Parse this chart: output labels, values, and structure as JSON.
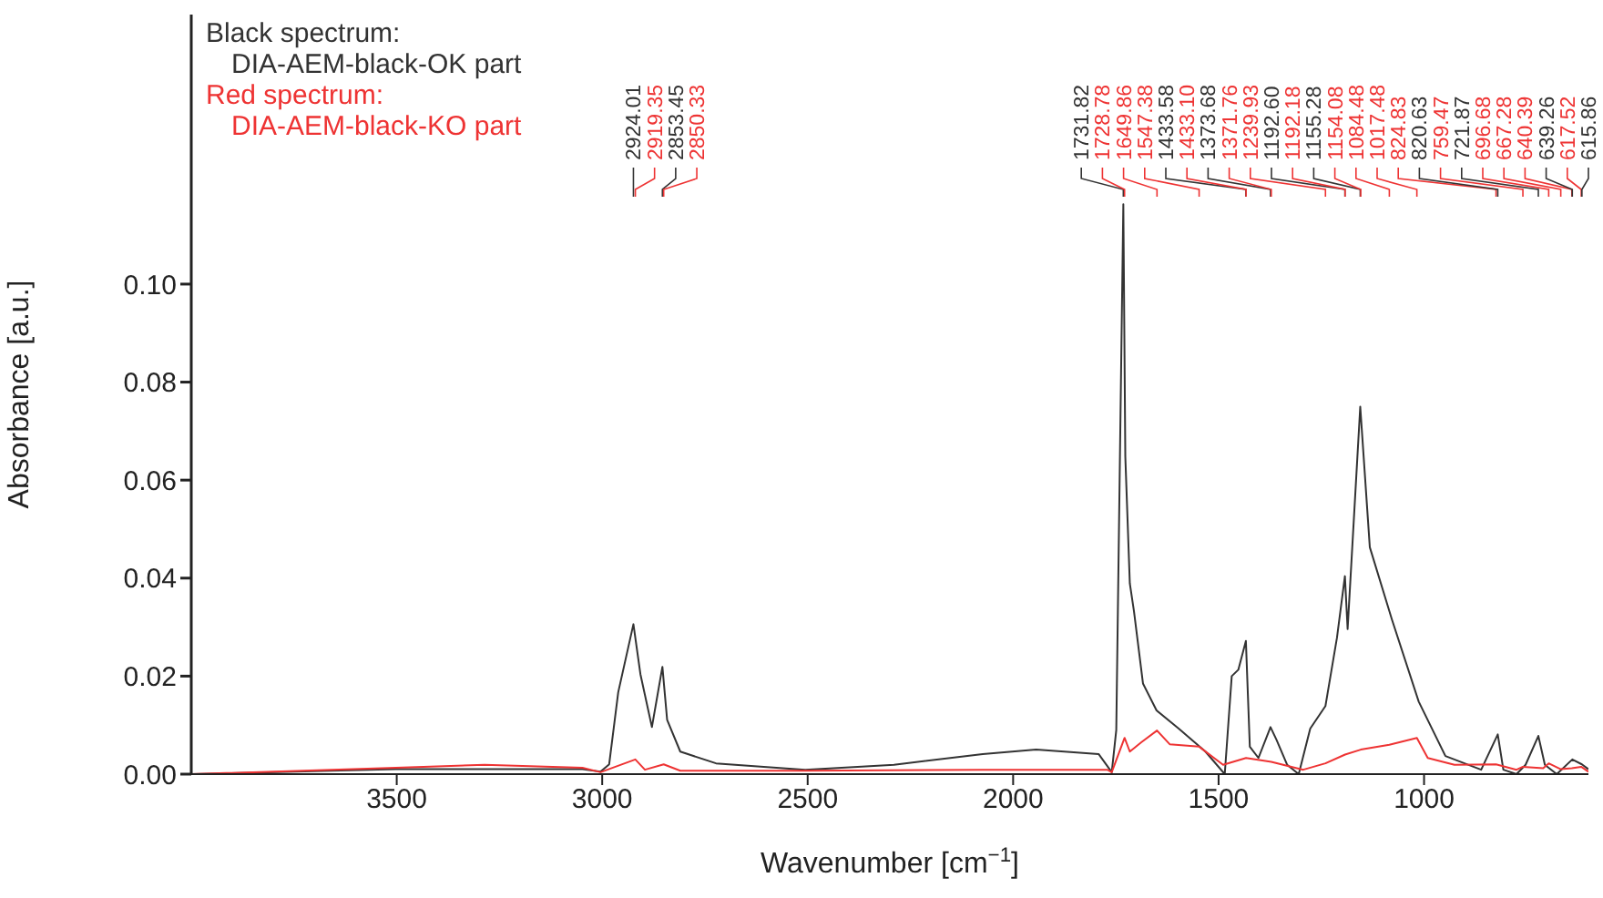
{
  "chart_data": {
    "type": "line",
    "xlabel": "Wavenumber [cm$^{−1}$]",
    "ylabel": "Absorbance [a.u.]",
    "xlim": [
      4000,
      600
    ],
    "xticks": [
      3500,
      3000,
      2500,
      2000,
      1500,
      1000
    ],
    "ylim": [
      0,
      0.155
    ],
    "yticks": [
      {
        "value": 0,
        "label": "0.00"
      },
      {
        "value": 0.02,
        "label": "0.02"
      },
      {
        "value": 0.04,
        "label": "0.04"
      },
      {
        "value": 0.06,
        "label": "0.06"
      },
      {
        "value": 0.08,
        "label": "0.08"
      },
      {
        "value": 0.1,
        "label": "0.10"
      }
    ],
    "legend": "top left",
    "series": [
      {
        "name": "Black spectrum:\nDIA-AEM-black-OK part",
        "color": "#333333",
        "x": [
          4000,
          3502,
          3048,
          3004,
          2983,
          2961,
          2924.01,
          2907,
          2879,
          2853.45,
          2842,
          2810,
          2723,
          2506,
          2290,
          2074,
          1944,
          1792,
          1760,
          1749,
          1731.82,
          1727,
          1716,
          1706,
          1684,
          1651,
          1597,
          1532,
          1485,
          1468,
          1452,
          1433.58,
          1424,
          1403,
          1373.68,
          1359,
          1333,
          1305,
          1277,
          1240,
          1212,
          1192.6,
          1186,
          1155.28,
          1132,
          1078,
          1013,
          948,
          861,
          820.63,
          807,
          775,
          753,
          721.87,
          706,
          677,
          639.26,
          615.86,
          600
        ],
        "values": [
          0.0,
          0.001,
          0.001,
          0.0005,
          0.002,
          0.0167,
          0.0306,
          0.0204,
          0.0096,
          0.0219,
          0.0111,
          0.0046,
          0.0022,
          0.0009,
          0.0019,
          0.0041,
          0.005,
          0.0041,
          0.0004,
          0.009,
          0.1163,
          0.0648,
          0.0389,
          0.0333,
          0.0185,
          0.013,
          0.0093,
          0.0046,
          0.0,
          0.02,
          0.0213,
          0.0272,
          0.0056,
          0.0033,
          0.0096,
          0.007,
          0.0019,
          0.0,
          0.0093,
          0.0139,
          0.0278,
          0.0404,
          0.0296,
          0.075,
          0.0463,
          0.0315,
          0.0148,
          0.0037,
          0.0009,
          0.0081,
          0.0009,
          0.0,
          0.0019,
          0.0078,
          0.0019,
          0.0,
          0.003,
          0.002,
          0.001
        ]
      },
      {
        "name": "Red spectrum:\nDIA-AEM-black-KO part",
        "color": "#ee3333",
        "x": [
          4000,
          3502,
          3286,
          3048,
          3004,
          2919.35,
          2896,
          2850.33,
          2810,
          2506,
          2074,
          1771,
          1760,
          1728.78,
          1716,
          1688,
          1649.86,
          1619,
          1547.38,
          1489,
          1433.1,
          1371.76,
          1294,
          1239.93,
          1192.18,
          1154.08,
          1084.48,
          1017.48,
          991,
          926,
          824.83,
          775,
          759.47,
          710,
          696.68,
          667.28,
          640.39,
          617.52,
          600
        ],
        "values": [
          0.0,
          0.0013,
          0.0019,
          0.0013,
          0.0004,
          0.003,
          0.0009,
          0.002,
          0.0007,
          0.0007,
          0.0009,
          0.0009,
          0.0004,
          0.0074,
          0.0046,
          0.0065,
          0.0089,
          0.0061,
          0.0056,
          0.0019,
          0.0033,
          0.0025,
          0.0009,
          0.0022,
          0.004,
          0.005,
          0.006,
          0.0074,
          0.0033,
          0.0019,
          0.002,
          0.0009,
          0.0015,
          0.0012,
          0.0022,
          0.001,
          0.0012,
          0.0015,
          0.0005
        ]
      }
    ],
    "annotations": [
      {
        "text": "2924.01",
        "x": 2924.01
      },
      {
        "text": "2919.35",
        "x": 2919.35
      },
      {
        "text": "2853.45",
        "x": 2853.45
      },
      {
        "text": "2850.33",
        "x": 2850.33
      },
      {
        "text": "1731.82",
        "x": 1731.82
      },
      {
        "text": "1728.78",
        "x": 1728.78
      },
      {
        "text": "1649.86",
        "x": 1649.86
      },
      {
        "text": "1547.38",
        "x": 1547.38
      },
      {
        "text": "1433.58",
        "x": 1433.58
      },
      {
        "text": "1433.10",
        "x": 1433.1
      },
      {
        "text": "1373.68",
        "x": 1373.68
      },
      {
        "text": "1371.76",
        "x": 1371.76
      },
      {
        "text": "1239.93",
        "x": 1239.93
      },
      {
        "text": "1192.60",
        "x": 1192.6
      },
      {
        "text": "1192.18",
        "x": 1192.18
      },
      {
        "text": "1155.28",
        "x": 1155.28
      },
      {
        "text": "1154.08",
        "x": 1154.08
      },
      {
        "text": "1084.48",
        "x": 1084.48
      },
      {
        "text": "1017.48",
        "x": 1017.48
      },
      {
        "text": "824.83",
        "x": 824.83
      },
      {
        "text": "820.63",
        "x": 820.63
      },
      {
        "text": "759.47",
        "x": 759.47
      },
      {
        "text": "721.87",
        "x": 721.87
      },
      {
        "text": "696.68",
        "x": 696.68
      },
      {
        "text": "667.28",
        "x": 667.28
      },
      {
        "text": "640.39",
        "x": 640.39
      },
      {
        "text": "639.26",
        "x": 639.26
      },
      {
        "text": "617.52",
        "x": 617.52
      },
      {
        "text": "615.86",
        "x": 615.86
      }
    ]
  }
}
